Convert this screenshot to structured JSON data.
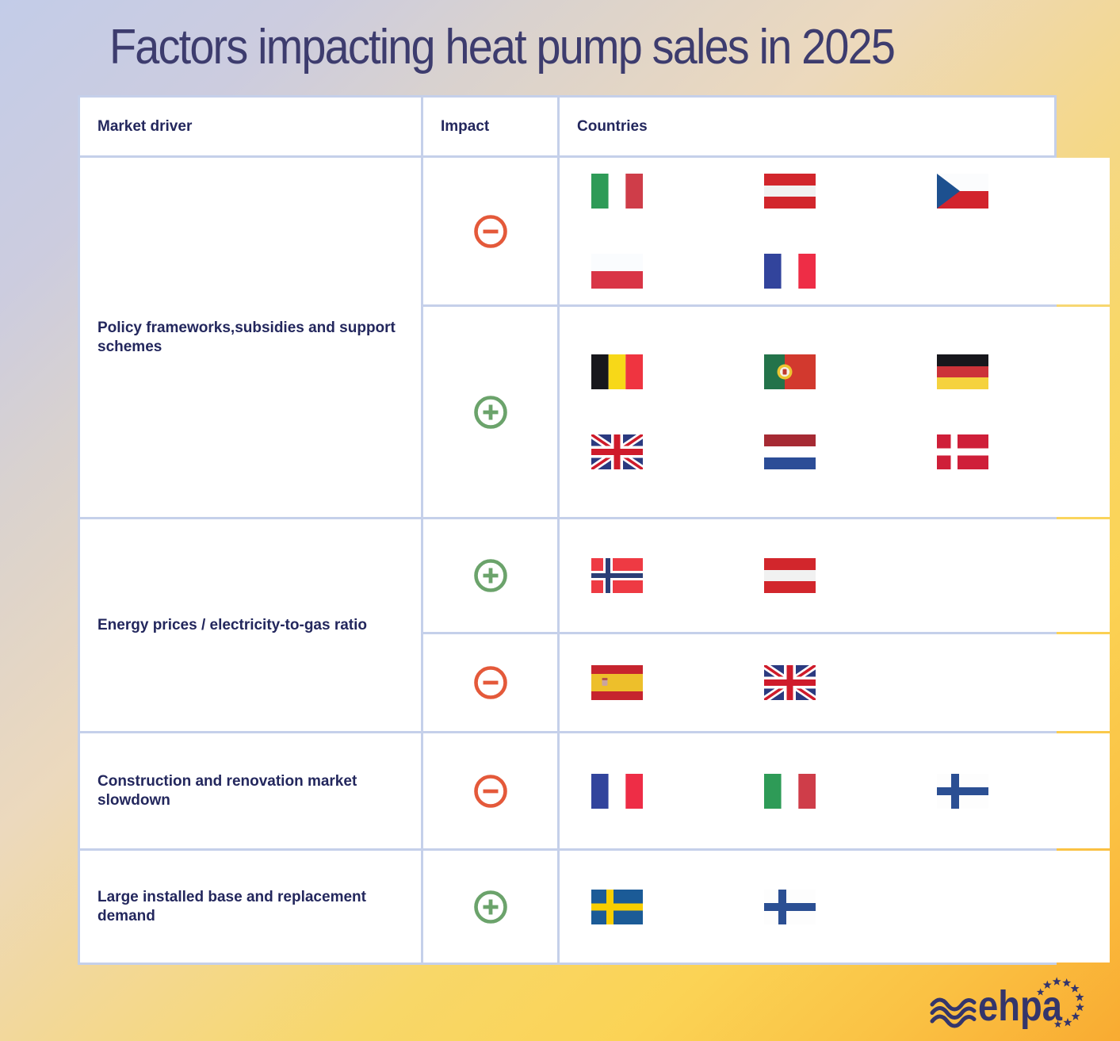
{
  "title": "Factors impacting heat pump sales in 2025",
  "chart_data": {
    "type": "table",
    "title": "Factors impacting heat pump sales in 2025",
    "columns": [
      "Market driver",
      "Impact",
      "Countries"
    ],
    "rows": [
      {
        "driver": "Policy frameworks,subsidies and support schemes",
        "subrows": [
          {
            "impact": "negative",
            "countries": [
              "Italy",
              "Austria",
              "Czech Republic",
              "Poland",
              "France"
            ]
          },
          {
            "impact": "positive",
            "countries": [
              "Belgium",
              "Portugal",
              "Germany",
              "United Kingdom",
              "Netherlands",
              "Denmark"
            ]
          }
        ]
      },
      {
        "driver": "Energy prices / electricity-to-gas ratio",
        "subrows": [
          {
            "impact": "positive",
            "countries": [
              "Norway",
              "Austria"
            ]
          },
          {
            "impact": "negative",
            "countries": [
              "Spain",
              "United Kingdom"
            ]
          }
        ]
      },
      {
        "driver": "Construction and renovation market slowdown",
        "subrows": [
          {
            "impact": "negative",
            "countries": [
              "France",
              "Italy",
              "Finland"
            ]
          }
        ]
      },
      {
        "driver": "Large installed base and replacement demand",
        "subrows": [
          {
            "impact": "positive",
            "countries": [
              "Sweden",
              "Finland"
            ]
          }
        ]
      }
    ],
    "impact_icons": {
      "positive": "plus-circle-icon",
      "negative": "minus-circle-icon"
    }
  },
  "colors": {
    "positive_green": "#6ba36b",
    "negative_orange": "#e4593a",
    "title_navy": "#3d3c6e",
    "table_border": "#c5d0ea",
    "logo_navy": "#34356b",
    "background_top_left": "#c3cce8",
    "background_bottom_right": "#f9ab31"
  },
  "footer": {
    "logo_text": "ehpa"
  }
}
